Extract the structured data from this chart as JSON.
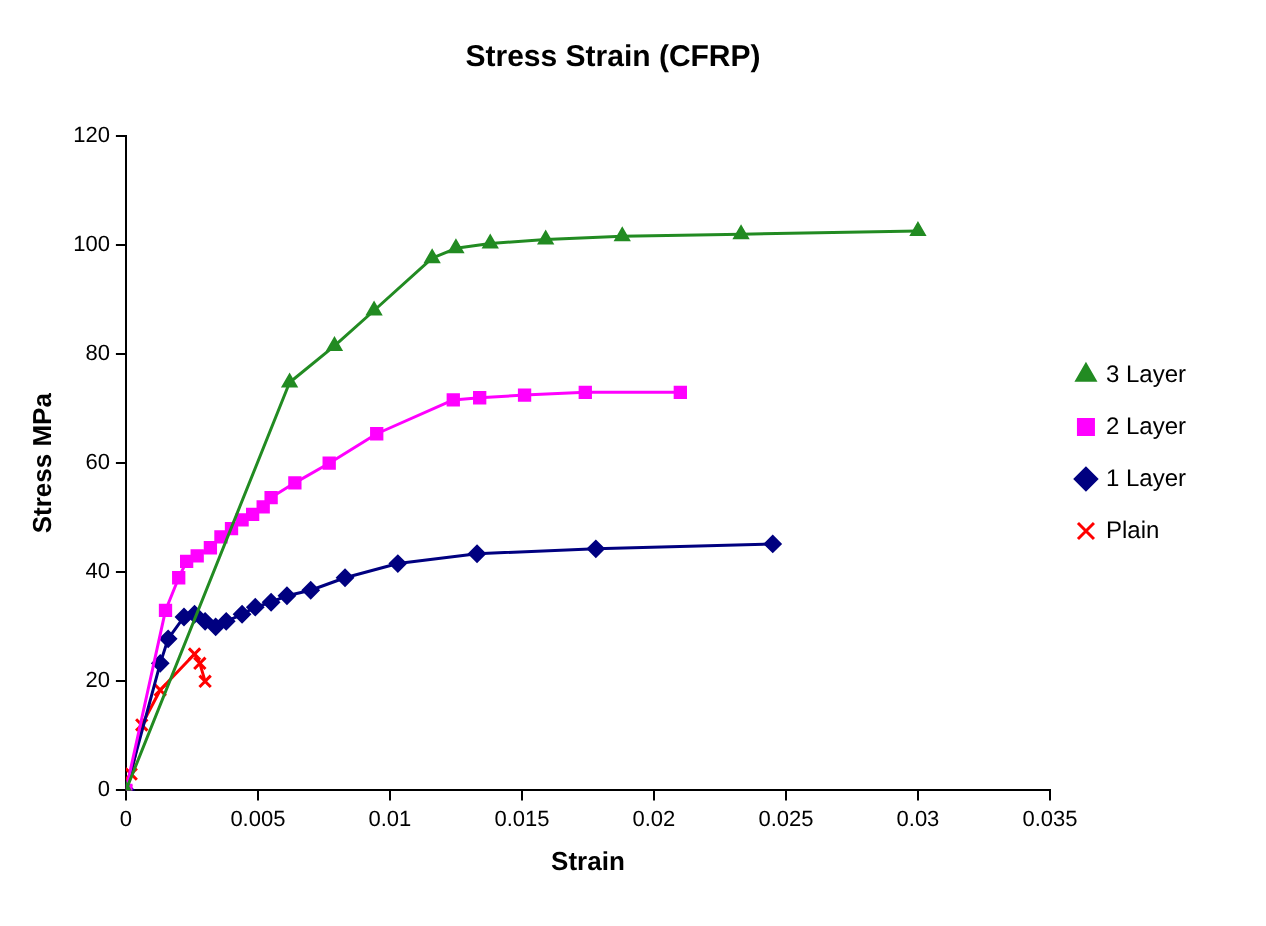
{
  "chart_data": {
    "type": "line",
    "title": "Stress Strain (CFRP)",
    "xlabel": "Strain",
    "ylabel": "Stress MPa",
    "xlim": [
      0,
      0.035
    ],
    "xticks": [
      0,
      0.005,
      0.01,
      0.015,
      0.02,
      0.025,
      0.03,
      0.035
    ],
    "ylim": [
      0,
      120
    ],
    "yticks": [
      0,
      20,
      40,
      60,
      80,
      100,
      120
    ],
    "grid": false,
    "legend": "right",
    "line_style": "solid",
    "series": [
      {
        "name": "3 Layer",
        "color": "#228b22",
        "marker": "triangle",
        "x": [
          0,
          0.0062,
          0.0079,
          0.0094,
          0.0116,
          0.0125,
          0.0138,
          0.0159,
          0.0188,
          0.0233,
          0.03
        ],
        "values": [
          0,
          74.8,
          81.5,
          88,
          97.6,
          99.4,
          100.3,
          101,
          101.6,
          102,
          102.6
        ]
      },
      {
        "name": "2 Layer",
        "color": "#ff00ff",
        "marker": "square",
        "x": [
          0,
          0.0015,
          0.002,
          0.0023,
          0.0027,
          0.0032,
          0.0036,
          0.004,
          0.0044,
          0.0048,
          0.0052,
          0.0055,
          0.0064,
          0.0077,
          0.0095,
          0.0124,
          0.0134,
          0.0151,
          0.0174,
          0.021
        ],
        "values": [
          0,
          33,
          39,
          42,
          43,
          44.5,
          46.5,
          48,
          49.6,
          50.6,
          52,
          53.7,
          56.4,
          60,
          65.4,
          71.6,
          72,
          72.5,
          73,
          73
        ]
      },
      {
        "name": "1 Layer",
        "color": "#000080",
        "marker": "diamond",
        "x": [
          0,
          0.0013,
          0.0016,
          0.0022,
          0.0026,
          0.003,
          0.0034,
          0.0038,
          0.0044,
          0.0049,
          0.0055,
          0.0061,
          0.007,
          0.0083,
          0.0103,
          0.0133,
          0.0178,
          0.0245
        ],
        "values": [
          0,
          23.3,
          27.8,
          31.8,
          32.3,
          31,
          30,
          31,
          32.3,
          33.6,
          34.5,
          35.7,
          36.7,
          39,
          41.6,
          43.4,
          44.3,
          45.2
        ]
      },
      {
        "name": "Plain",
        "color": "#ff0000",
        "marker": "cross",
        "x": [
          0,
          0.0002,
          0.0006,
          0.0013,
          0.0026,
          0.0028,
          0.003
        ],
        "values": [
          0,
          3,
          12,
          18.4,
          25,
          23.3,
          20
        ]
      }
    ]
  }
}
